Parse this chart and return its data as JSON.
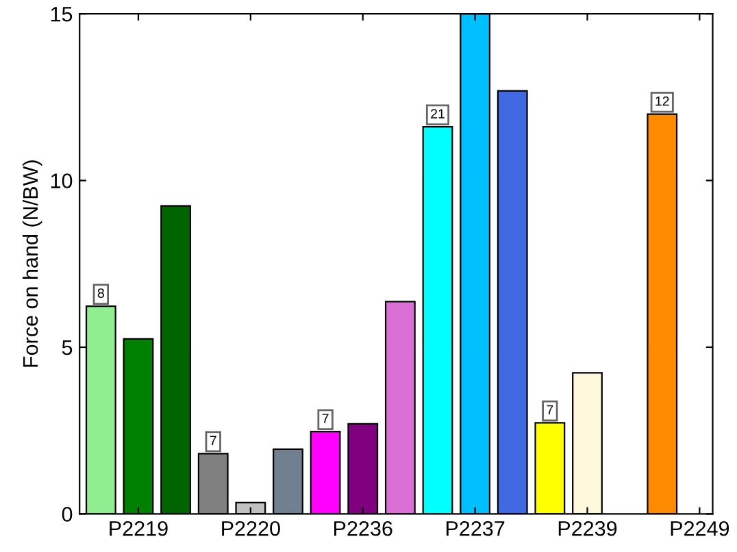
{
  "chart_data": {
    "type": "bar",
    "ylabel": "Force on hand (N/BW)",
    "categories": [
      "P2219",
      "P2220",
      "P2236",
      "P2237",
      "P2239",
      "P2249"
    ],
    "series": [
      {
        "values": [
          6.23,
          1.81,
          2.47,
          11.61,
          2.73,
          11.99
        ],
        "colors": [
          "#90ee90",
          "#808080",
          "#ff00ff",
          "#00ffff",
          "#ffff00",
          "#ff8c00"
        ]
      },
      {
        "values": [
          5.25,
          0.34,
          2.7,
          15,
          4.23,
          null
        ],
        "colors": [
          "#008000",
          "#c0c0c0",
          "#800080",
          "#00bfff",
          "#fff8dc",
          null
        ]
      },
      {
        "values": [
          9.24,
          1.94,
          6.37,
          12.69,
          null,
          null
        ],
        "colors": [
          "#006400",
          "#708090",
          "#da70d6",
          "#4169e1",
          null,
          null
        ]
      }
    ],
    "annotations": [
      "8",
      "7",
      "7",
      "21",
      "7",
      "12"
    ],
    "ylim": [
      0,
      15
    ],
    "yticks": [
      0,
      5,
      10,
      15
    ],
    "grid": false,
    "legend": false
  }
}
